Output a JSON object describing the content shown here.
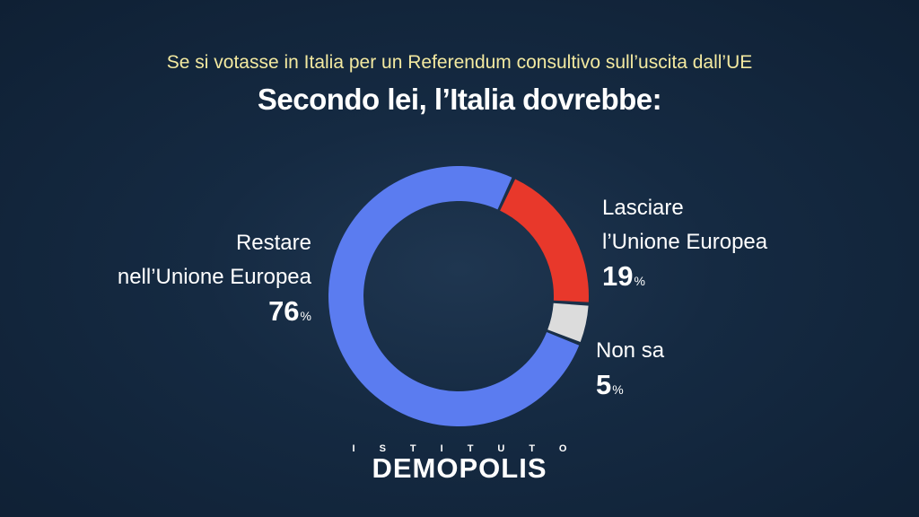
{
  "subtitle": "Se si votasse in Italia per un Referendum consultivo sull’uscita dall’UE",
  "title": "Secondo lei, l’Italia dovrebbe:",
  "labels": {
    "restare_line1": "Restare",
    "restare_line2": "nell’Unione Europea",
    "restare_pct": "76",
    "lasciare_line1": "Lasciare",
    "lasciare_line2": "l’Unione Europea",
    "lasciare_pct": "19",
    "nonsa_line1": "Non sa",
    "nonsa_pct": "5",
    "unit": "%"
  },
  "logo": {
    "top": "ISTITUTO",
    "main": "DEMOPOLIS"
  },
  "chart_data": {
    "type": "pie",
    "categories": [
      "Restare nell’Unione Europea",
      "Lasciare l’Unione Europea",
      "Non sa"
    ],
    "values": [
      76,
      19,
      5
    ],
    "colors": [
      "#5b7cf0",
      "#e8382b",
      "#dcdcdc"
    ],
    "title": "Secondo lei, l’Italia dovrebbe:",
    "subtitle": "Se si votasse in Italia per un Referendum consultivo sull’uscita dall’UE",
    "unit": "%"
  }
}
